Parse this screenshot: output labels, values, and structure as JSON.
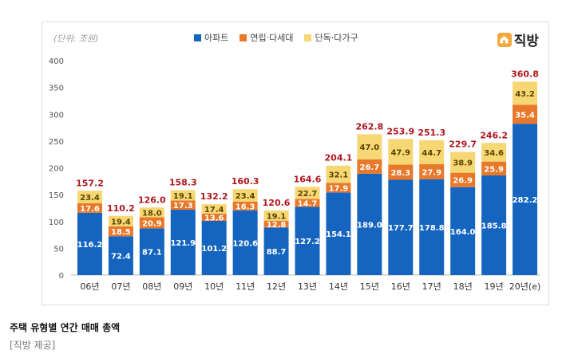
{
  "chart_data": {
    "type": "bar",
    "stacked": true,
    "unit_note": "(단위: 조원)",
    "categories": [
      "06년",
      "07년",
      "08년",
      "09년",
      "10년",
      "11년",
      "12년",
      "13년",
      "14년",
      "15년",
      "16년",
      "17년",
      "18년",
      "19년",
      "20년"
    ],
    "category_suffix_last": "(e)",
    "series": [
      {
        "name": "아파트",
        "color": "#1565c0",
        "values": [
          116.2,
          72.4,
          87.1,
          121.9,
          101.2,
          120.6,
          88.7,
          127.2,
          154.1,
          189.0,
          177.7,
          178.8,
          164.0,
          185.8,
          282.2
        ]
      },
      {
        "name": "연립·다세대",
        "color": "#e8792a",
        "values": [
          17.6,
          18.5,
          20.9,
          17.3,
          13.6,
          16.3,
          12.8,
          14.7,
          17.9,
          26.7,
          28.3,
          27.9,
          26.9,
          25.9,
          35.4
        ]
      },
      {
        "name": "단독·다가구",
        "color": "#f7d774",
        "values": [
          23.4,
          19.4,
          18.0,
          19.1,
          17.4,
          23.4,
          19.1,
          22.7,
          32.1,
          47.0,
          47.9,
          44.7,
          38.9,
          34.6,
          43.2
        ]
      }
    ],
    "totals": [
      157.2,
      110.2,
      126.0,
      158.3,
      132.2,
      160.3,
      120.6,
      164.6,
      204.1,
      262.8,
      253.9,
      251.3,
      229.7,
      246.2,
      360.8
    ],
    "ylim": [
      0,
      400
    ],
    "yticks": [
      0,
      50,
      100,
      150,
      200,
      250,
      300,
      350,
      400
    ],
    "grid": false,
    "legend_position": "top-center",
    "total_label_color": "#b0161e"
  },
  "logo": {
    "text": "직방"
  },
  "caption": {
    "title": "주택 유형별 연간 매매 총액",
    "source": "[직방 제공]"
  }
}
